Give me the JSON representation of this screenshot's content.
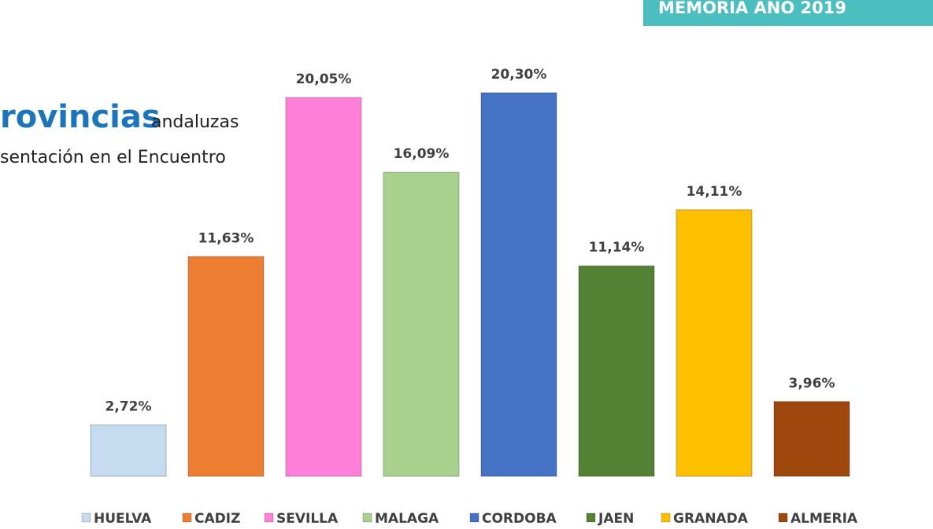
{
  "header": {
    "badge": "MEMORIA AÑO 2019"
  },
  "text": {
    "title_fragment": "rovincias",
    "title_rest": "andaluzas",
    "subtitle_fragment": "sentación en el Encuentro"
  },
  "chart_data": {
    "type": "bar",
    "categories": [
      "HUELVA",
      "CADIZ",
      "SEVILLA",
      "MALAGA",
      "CORDOBA",
      "JAEN",
      "GRANADA",
      "ALMERIA"
    ],
    "values": [
      2.72,
      11.63,
      20.05,
      16.09,
      20.3,
      11.14,
      14.11,
      3.96
    ],
    "value_labels": [
      "2,72%",
      "11,63%",
      "20,05%",
      "16,09%",
      "20,30%",
      "11,14%",
      "14,11%",
      "3,96%"
    ],
    "colors": [
      "#c5dcf0",
      "#ed7d31",
      "#ff80d8",
      "#a9d18e",
      "#4472c4",
      "#548235",
      "#ffc000",
      "#9e480e"
    ],
    "ylim": [
      0,
      25
    ],
    "legend": "bottom"
  }
}
